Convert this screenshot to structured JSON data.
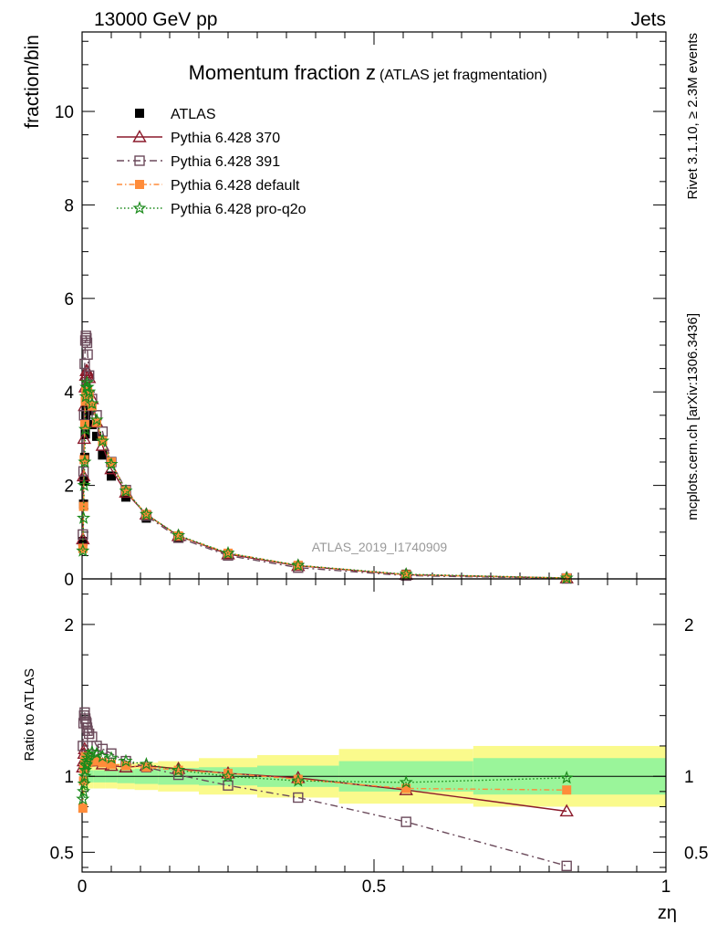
{
  "header": {
    "left": "13000 GeV pp",
    "right": "Jets"
  },
  "side_labels": {
    "top": "Rivet 3.1.10, ≥ 2.3M events",
    "bottom": "mcplots.cern.ch [arXiv:1306.3436]"
  },
  "watermark": "ATLAS_2019_I1740909",
  "chart_data": [
    {
      "type": "scatter",
      "title": "Momentum fraction z",
      "subtitle": "(ATLAS jet fragmentation)",
      "ylabel": "fraction/bin",
      "xlim": [
        0,
        1
      ],
      "ylim": [
        0,
        11.7
      ],
      "y_ticks": [
        0,
        2,
        4,
        6,
        8,
        10
      ],
      "legend_position": "top-left",
      "x": [
        0.0013,
        0.0025,
        0.0035,
        0.0045,
        0.0055,
        0.0065,
        0.0075,
        0.0085,
        0.0095,
        0.012,
        0.017,
        0.025,
        0.035,
        0.05,
        0.075,
        0.11,
        0.165,
        0.25,
        0.37,
        0.555,
        0.83
      ],
      "series": [
        {
          "name": "ATLAS",
          "marker": "square-filled",
          "color": "#000000",
          "values": [
            0.8,
            1.6,
            2.1,
            2.6,
            3.1,
            3.5,
            3.65,
            3.7,
            3.7,
            3.6,
            3.3,
            3.05,
            2.65,
            2.2,
            1.75,
            1.3,
            0.88,
            0.53,
            0.28,
            0.1,
            0.02
          ]
        },
        {
          "name": "Pythia 6.428 370",
          "marker": "triangle-open",
          "color": "#8b1a2b",
          "dash": "",
          "values": [
            0.85,
            2.2,
            3.0,
            3.7,
            4.1,
            4.35,
            4.45,
            4.45,
            4.4,
            4.3,
            3.85,
            3.35,
            2.85,
            2.35,
            1.85,
            1.38,
            0.92,
            0.53,
            0.28,
            0.09,
            0.016
          ]
        },
        {
          "name": "Pythia 6.428 391",
          "marker": "square-open",
          "color": "#6b4a5b",
          "dash": "8,4,2,4",
          "values": [
            0.95,
            2.3,
            3.5,
            4.6,
            5.1,
            5.2,
            5.15,
            5.05,
            4.8,
            4.35,
            3.85,
            3.5,
            3.15,
            2.5,
            1.9,
            1.35,
            0.88,
            0.5,
            0.24,
            0.07,
            0.009
          ]
        },
        {
          "name": "Pythia 6.428 default",
          "marker": "square-filled",
          "color": "#ff8c3a",
          "dash": "6,3,1.5,3",
          "values": [
            0.65,
            1.55,
            2.55,
            3.3,
            3.8,
            4.0,
            4.0,
            4.0,
            4.0,
            3.95,
            3.7,
            3.35,
            2.95,
            2.5,
            1.88,
            1.38,
            0.92,
            0.55,
            0.29,
            0.09,
            0.02
          ]
        },
        {
          "name": "Pythia 6.428 pro-q2o",
          "marker": "star-open",
          "color": "#1a8a1a",
          "dash": "1.5,2.5",
          "values": [
            0.6,
            1.3,
            2.0,
            2.5,
            3.2,
            3.9,
            4.1,
            4.2,
            4.1,
            4.0,
            3.75,
            3.4,
            2.95,
            2.45,
            1.88,
            1.38,
            0.93,
            0.55,
            0.29,
            0.1,
            0.02
          ]
        }
      ]
    },
    {
      "type": "scatter",
      "ylabel": "Ratio to ATLAS",
      "xlabel": "zη",
      "xlim": [
        0,
        1
      ],
      "ylim": [
        0.37,
        2.3
      ],
      "y_ticks": [
        0.5,
        1,
        2
      ],
      "x_ticks": [
        0,
        0.5,
        1
      ],
      "reference_line": 1,
      "bands": [
        {
          "x_edges": [
            0,
            0.005,
            0.01,
            0.02,
            0.04,
            0.06,
            0.09,
            0.13,
            0.2,
            0.3,
            0.44,
            0.67,
            1.0
          ],
          "inner_half": [
            0.06,
            0.045,
            0.04,
            0.04,
            0.04,
            0.045,
            0.05,
            0.055,
            0.06,
            0.07,
            0.1,
            0.12
          ],
          "outer_half": [
            0.12,
            0.09,
            0.08,
            0.08,
            0.08,
            0.085,
            0.09,
            0.1,
            0.12,
            0.14,
            0.18,
            0.2
          ],
          "inner_color": "#9af59a",
          "outer_color": "#fafa8c"
        }
      ],
      "x": [
        0.0013,
        0.0025,
        0.0035,
        0.0045,
        0.0055,
        0.0065,
        0.0075,
        0.0085,
        0.0095,
        0.012,
        0.017,
        0.025,
        0.035,
        0.05,
        0.075,
        0.11,
        0.165,
        0.25,
        0.37,
        0.555,
        0.83
      ],
      "series": [
        {
          "name": "Pythia 6.428 370",
          "values": [
            1.06,
            1.1,
            1.15,
            1.18,
            1.12,
            1.1,
            1.1,
            1.1,
            1.1,
            1.1,
            1.11,
            1.1,
            1.08,
            1.07,
            1.06,
            1.07,
            1.05,
            1.02,
            0.99,
            0.91,
            0.77
          ]
        },
        {
          "name": "Pythia 6.428 391",
          "values": [
            1.2,
            1.35,
            1.4,
            1.42,
            1.38,
            1.36,
            1.35,
            1.32,
            1.3,
            1.28,
            1.26,
            1.2,
            1.18,
            1.15,
            1.1,
            1.06,
            1.01,
            0.94,
            0.86,
            0.7,
            0.41
          ]
        },
        {
          "name": "Pythia 6.428 default",
          "values": [
            0.79,
            0.97,
            1.05,
            1.1,
            1.13,
            1.1,
            1.1,
            1.09,
            1.09,
            1.1,
            1.1,
            1.1,
            1.09,
            1.08,
            1.07,
            1.06,
            1.04,
            1.02,
            0.98,
            0.92,
            0.91
          ]
        },
        {
          "name": "Pythia 6.428 pro-q2o",
          "values": [
            0.85,
            0.9,
            0.95,
            1.0,
            1.04,
            1.07,
            1.08,
            1.1,
            1.12,
            1.14,
            1.16,
            1.15,
            1.13,
            1.12,
            1.1,
            1.08,
            1.04,
            1.0,
            0.97,
            0.96,
            0.99
          ]
        }
      ]
    }
  ]
}
